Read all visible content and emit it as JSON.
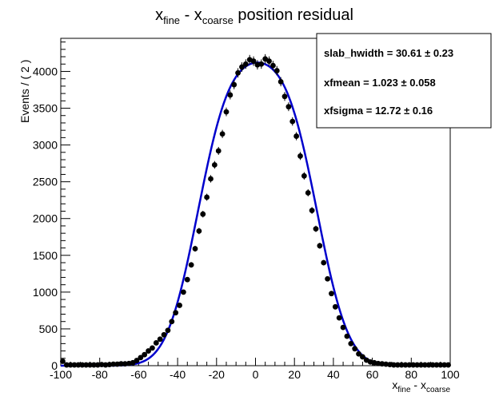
{
  "chart_data": {
    "type": "scatter",
    "title": {
      "base1": "x",
      "sub1": "fine",
      "mid": " - x",
      "sub2": "coarse",
      "tail": " position residual"
    },
    "xlabel": {
      "base1": "x",
      "sub1": "fine",
      "mid": " - x",
      "sub2": "coarse"
    },
    "ylabel": "Events / ( 2 )",
    "xlim": [
      -100,
      100
    ],
    "ylim": [
      0,
      4450
    ],
    "x_ticks": [
      "-100",
      "-80",
      "-60",
      "-40",
      "-20",
      "0",
      "20",
      "40",
      "60",
      "80",
      "100"
    ],
    "y_ticks": [
      "0",
      "500",
      "1000",
      "1500",
      "2000",
      "2500",
      "3000",
      "3500",
      "4000"
    ],
    "grid": false,
    "series": [
      {
        "role": "data points with error bars",
        "x": [
          -99,
          -97,
          -95,
          -93,
          -91,
          -89,
          -87,
          -85,
          -83,
          -81,
          -79,
          -77,
          -75,
          -73,
          -71,
          -69,
          -67,
          -65,
          -63,
          -61,
          -59,
          -57,
          -55,
          -53,
          -51,
          -49,
          -47,
          -45,
          -43,
          -41,
          -39,
          -37,
          -35,
          -33,
          -31,
          -29,
          -27,
          -25,
          -23,
          -21,
          -19,
          -17,
          -15,
          -13,
          -11,
          -9,
          -7,
          -5,
          -3,
          -1,
          1,
          3,
          5,
          7,
          9,
          11,
          13,
          15,
          17,
          19,
          21,
          23,
          25,
          27,
          29,
          31,
          33,
          35,
          37,
          39,
          41,
          43,
          45,
          47,
          49,
          51,
          53,
          55,
          57,
          59,
          61,
          63,
          65,
          67,
          69,
          71,
          73,
          75,
          77,
          79,
          81,
          83,
          85,
          87,
          89,
          91,
          93,
          95,
          97,
          99
        ],
        "y": [
          60,
          10,
          10,
          10,
          10,
          10,
          10,
          10,
          10,
          10,
          15,
          10,
          15,
          20,
          20,
          25,
          25,
          30,
          40,
          70,
          110,
          150,
          200,
          240,
          310,
          360,
          420,
          480,
          600,
          720,
          820,
          1000,
          1170,
          1370,
          1590,
          1830,
          2060,
          2290,
          2540,
          2730,
          2920,
          3150,
          3450,
          3680,
          3820,
          3980,
          4060,
          4100,
          4160,
          4140,
          4090,
          4100,
          4170,
          4140,
          4080,
          4010,
          3860,
          3660,
          3520,
          3320,
          3120,
          2850,
          2580,
          2350,
          2110,
          1860,
          1630,
          1400,
          1180,
          980,
          800,
          650,
          520,
          400,
          300,
          230,
          160,
          120,
          75,
          50,
          40,
          30,
          25,
          20,
          15,
          10,
          10,
          10,
          10,
          10,
          10,
          10,
          10,
          10,
          10,
          10,
          10,
          10,
          10,
          10
        ],
        "marker": "circle",
        "color": "#000000"
      },
      {
        "role": "fit curve",
        "color": "#0000cc"
      }
    ],
    "stats": [
      {
        "label": "slab_hwidth = ",
        "value": "30.61 ± 0.23"
      },
      {
        "label": "xfmean = ",
        "value": "1.023  ± 0.058"
      },
      {
        "label": "xfsigma = ",
        "value": "12.72  ± 0.16"
      }
    ]
  }
}
